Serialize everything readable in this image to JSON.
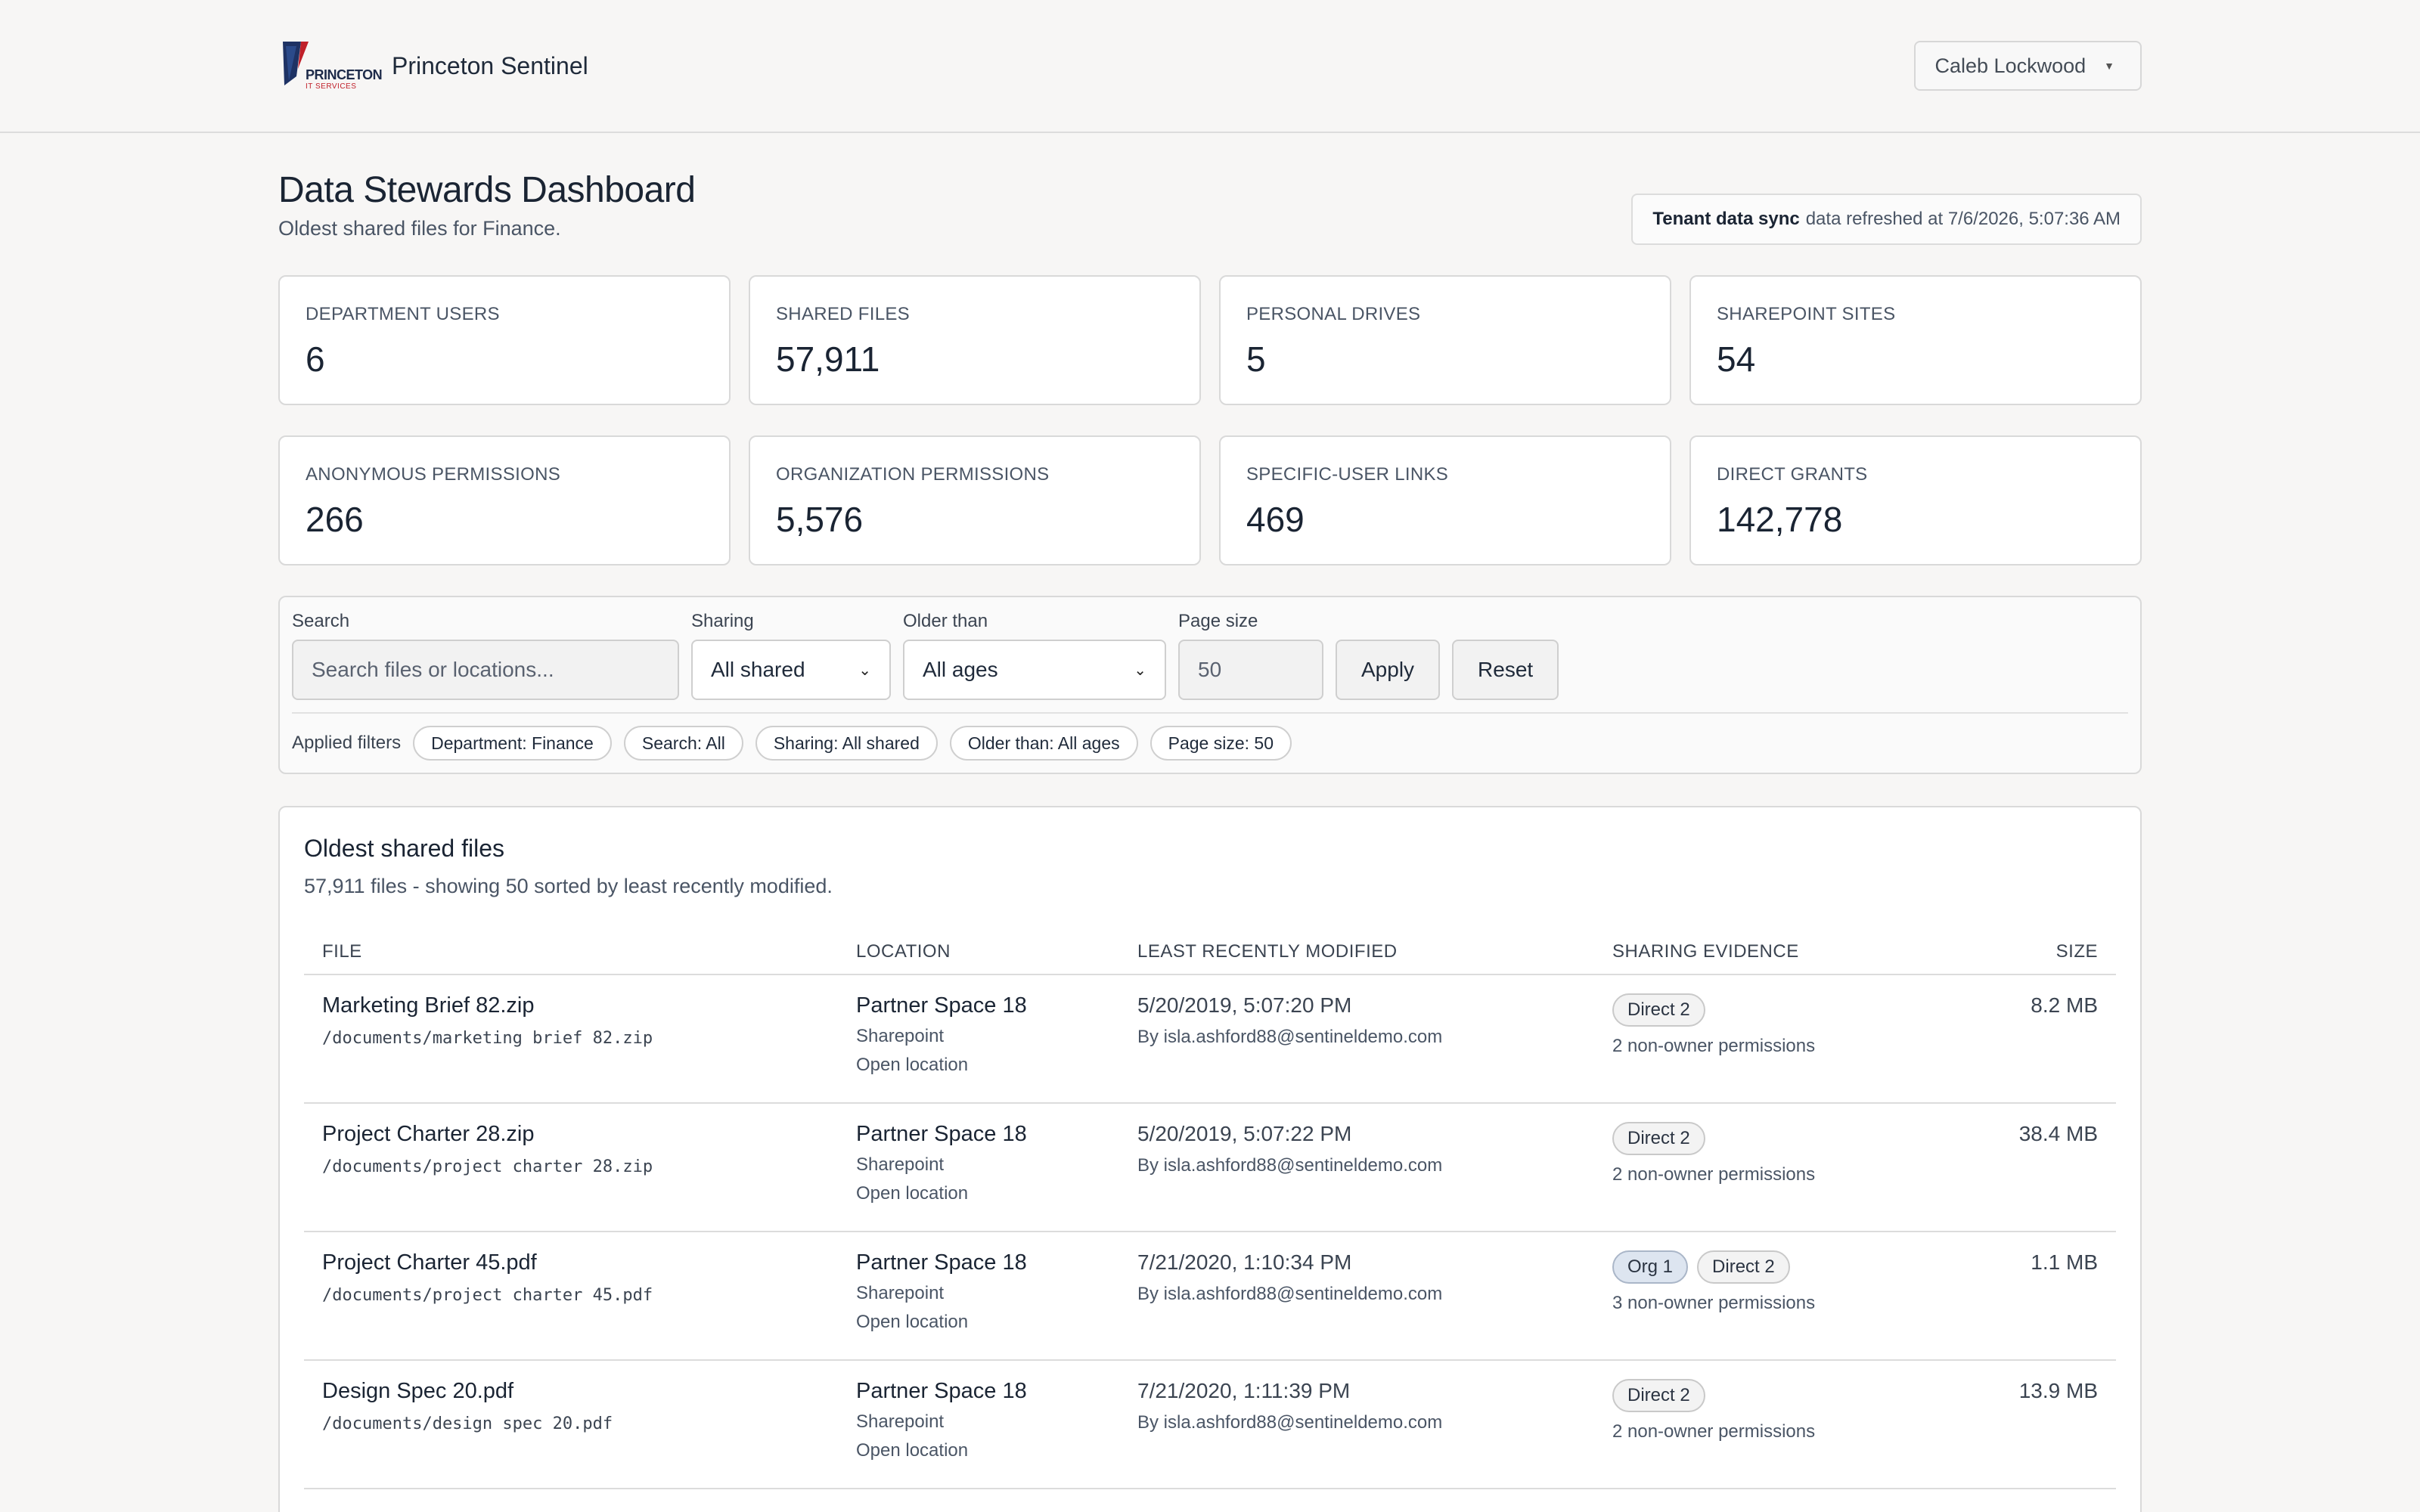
{
  "header": {
    "logo_word": "PRINCETON",
    "logo_sub": "IT SERVICES",
    "app_name": "Princeton Sentinel",
    "user_name": "Caleb Lockwood"
  },
  "page": {
    "title": "Data Stewards Dashboard",
    "subtitle": "Oldest shared files for Finance.",
    "sync_label": "Tenant data sync",
    "sync_text": "data refreshed at 7/6/2026, 5:07:36 AM"
  },
  "stats": [
    {
      "label": "DEPARTMENT USERS",
      "value": "6"
    },
    {
      "label": "SHARED FILES",
      "value": "57,911"
    },
    {
      "label": "PERSONAL DRIVES",
      "value": "5"
    },
    {
      "label": "SHAREPOINT SITES",
      "value": "54"
    },
    {
      "label": "ANONYMOUS PERMISSIONS",
      "value": "266"
    },
    {
      "label": "ORGANIZATION PERMISSIONS",
      "value": "5,576"
    },
    {
      "label": "SPECIFIC-USER LINKS",
      "value": "469"
    },
    {
      "label": "DIRECT GRANTS",
      "value": "142,778"
    }
  ],
  "filters": {
    "search_label": "Search",
    "search_placeholder": "Search files or locations...",
    "sharing_label": "Sharing",
    "sharing_value": "All shared",
    "older_label": "Older than",
    "older_value": "All ages",
    "page_size_label": "Page size",
    "page_size_value": "50",
    "apply_label": "Apply",
    "reset_label": "Reset",
    "applied_label": "Applied filters",
    "chips": [
      "Department: Finance",
      "Search: All",
      "Sharing: All shared",
      "Older than: All ages",
      "Page size: 50"
    ]
  },
  "files": {
    "title": "Oldest shared files",
    "summary": "57,911 files - showing 50 sorted by least recently modified.",
    "columns": [
      "FILE",
      "LOCATION",
      "LEAST RECENTLY MODIFIED",
      "SHARING EVIDENCE",
      "SIZE"
    ],
    "rows": [
      {
        "name": "Marketing Brief 82.zip",
        "path": "/documents/marketing brief 82.zip",
        "location": "Partner Space 18",
        "loc_type": "Sharepoint",
        "open": "Open location",
        "modified": "5/20/2019, 5:07:20 PM",
        "by": "By isla.ashford88@sentineldemo.com",
        "badges": [
          "Direct 2"
        ],
        "perms": "2 non-owner permissions",
        "size": "8.2 MB"
      },
      {
        "name": "Project Charter 28.zip",
        "path": "/documents/project charter 28.zip",
        "location": "Partner Space 18",
        "loc_type": "Sharepoint",
        "open": "Open location",
        "modified": "5/20/2019, 5:07:22 PM",
        "by": "By isla.ashford88@sentineldemo.com",
        "badges": [
          "Direct 2"
        ],
        "perms": "2 non-owner permissions",
        "size": "38.4 MB"
      },
      {
        "name": "Project Charter 45.pdf",
        "path": "/documents/project charter 45.pdf",
        "location": "Partner Space 18",
        "loc_type": "Sharepoint",
        "open": "Open location",
        "modified": "7/21/2020, 1:10:34 PM",
        "by": "By isla.ashford88@sentineldemo.com",
        "badges": [
          "Org 1",
          "Direct 2"
        ],
        "perms": "3 non-owner permissions",
        "size": "1.1 MB"
      },
      {
        "name": "Design Spec 20.pdf",
        "path": "/documents/design spec 20.pdf",
        "location": "Partner Space 18",
        "loc_type": "Sharepoint",
        "open": "Open location",
        "modified": "7/21/2020, 1:11:39 PM",
        "by": "By isla.ashford88@sentineldemo.com",
        "badges": [
          "Direct 2"
        ],
        "perms": "2 non-owner permissions",
        "size": "13.9 MB"
      }
    ]
  }
}
